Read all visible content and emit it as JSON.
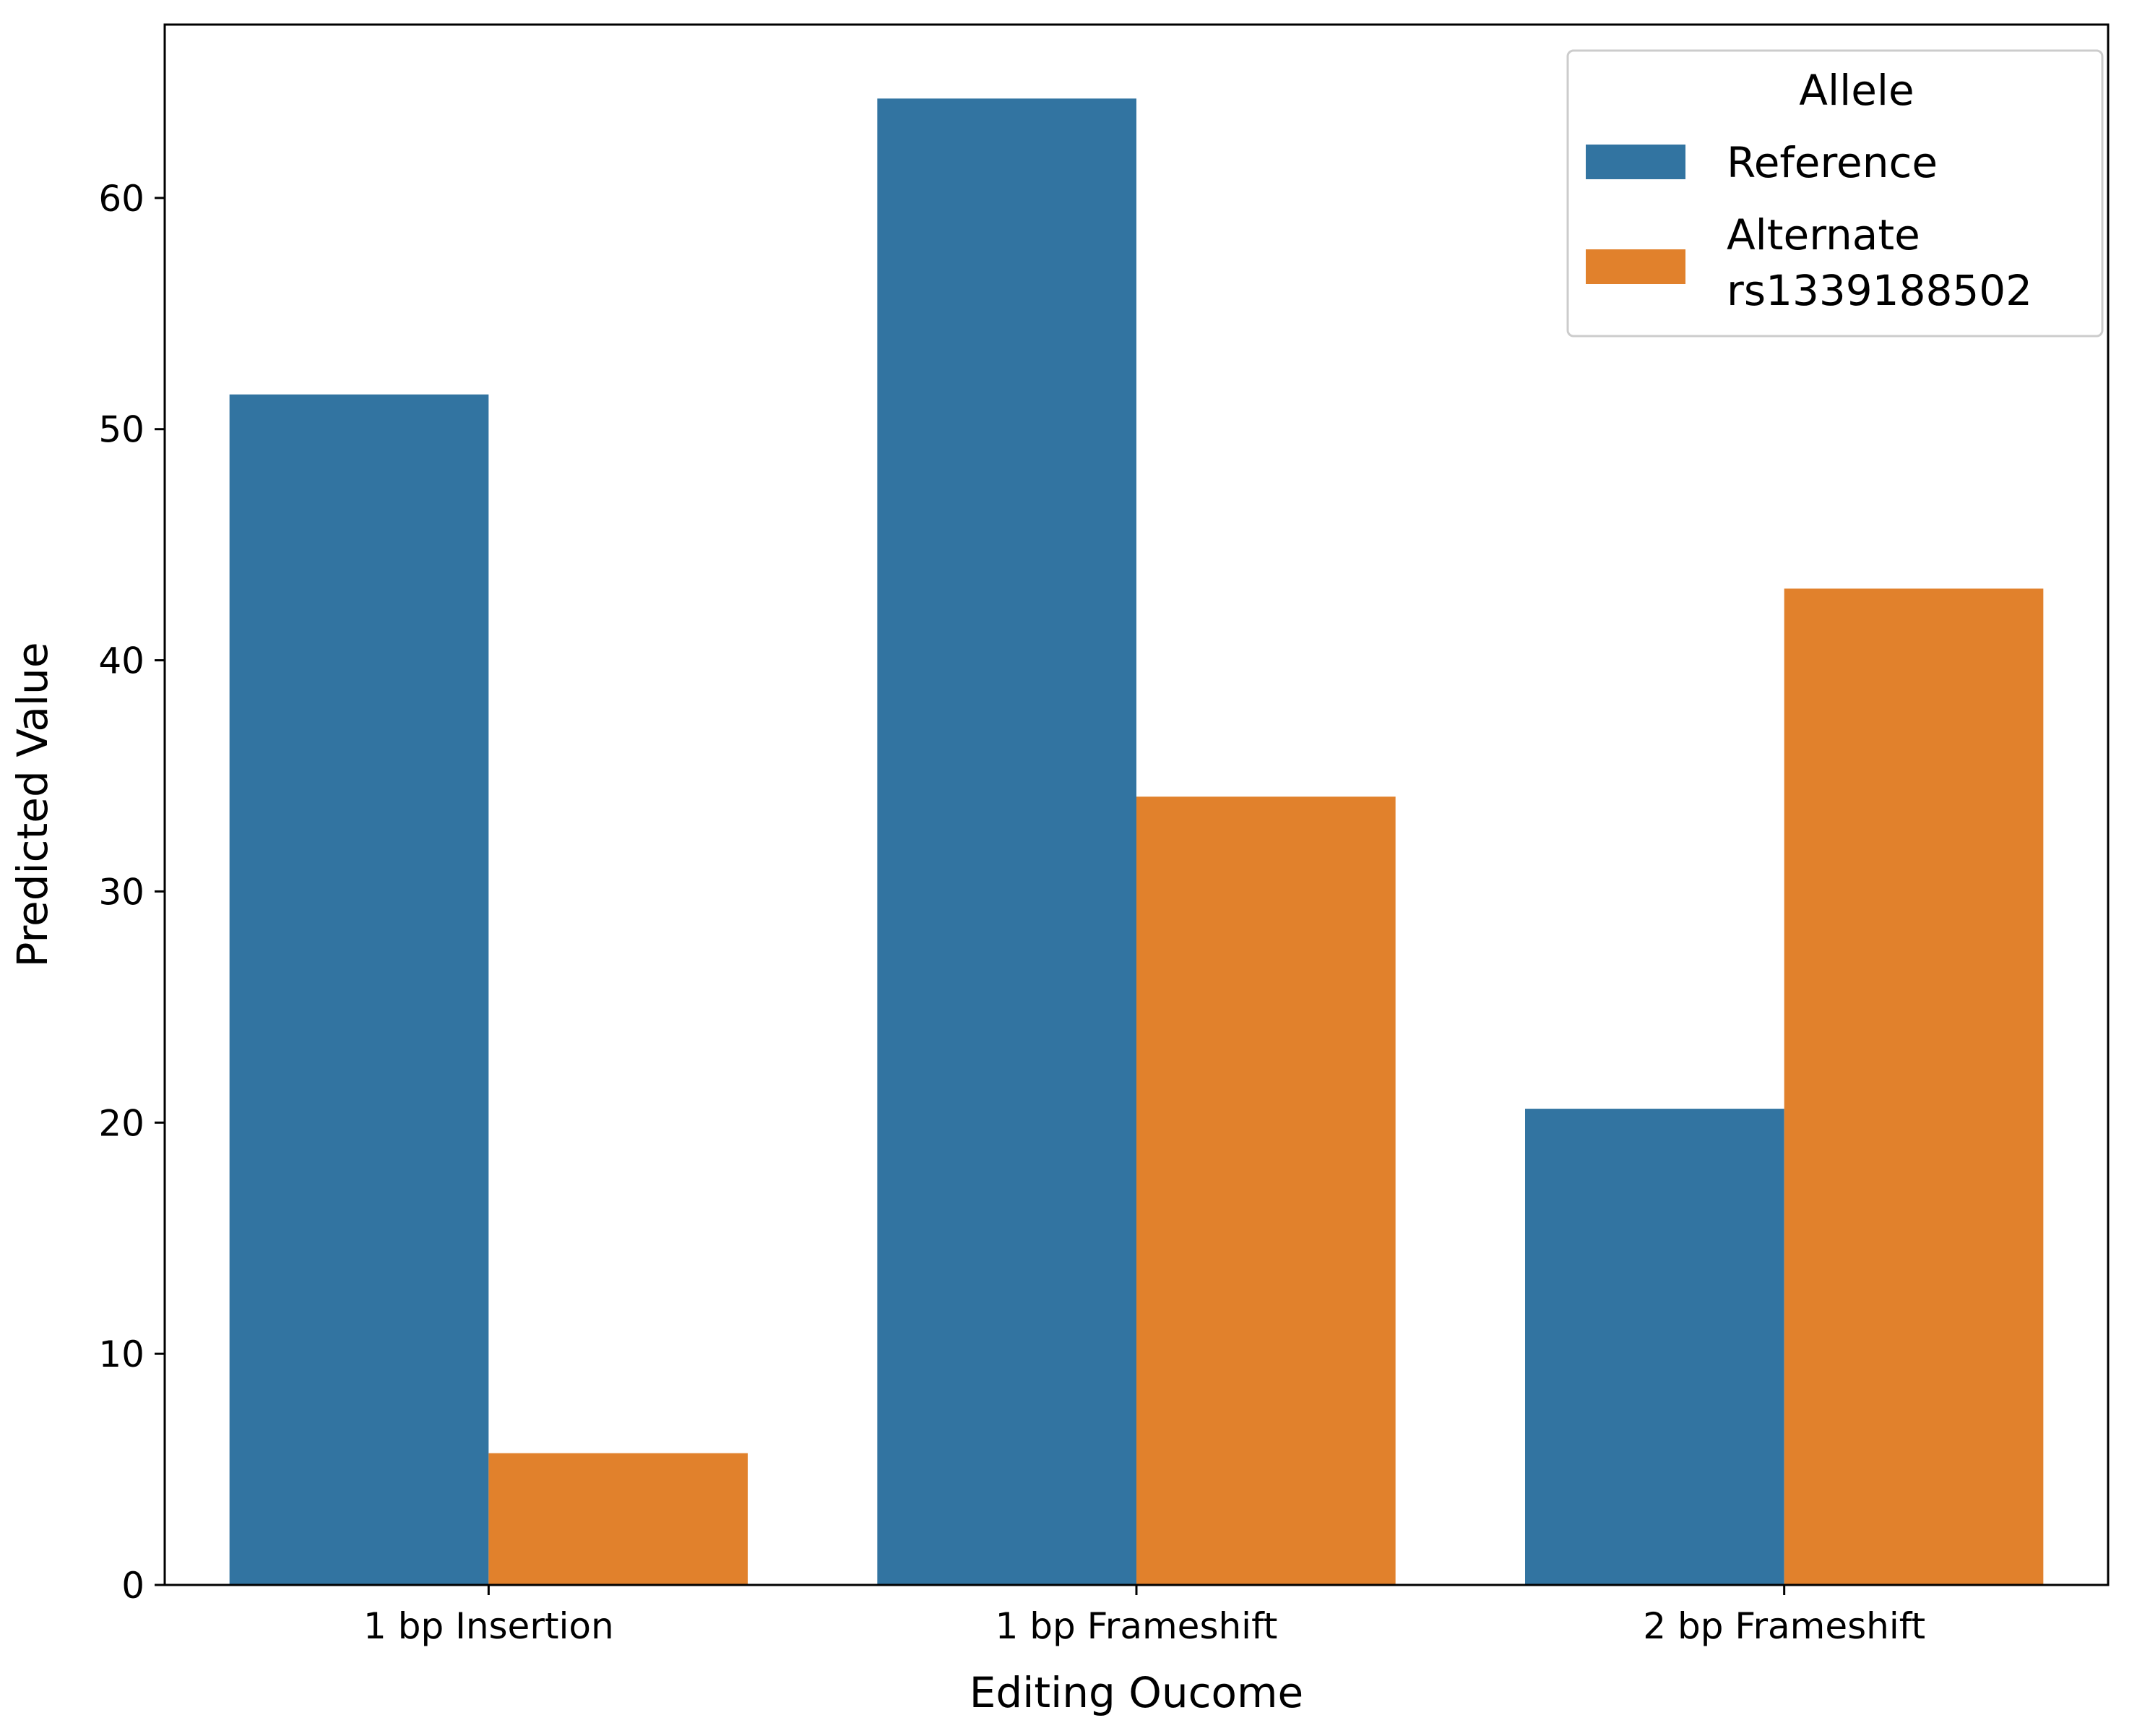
{
  "chart_data": {
    "type": "bar",
    "title": "",
    "xlabel": "Editing Oucome",
    "ylabel": "Predicted Value",
    "categories": [
      "1 bp Insertion",
      "1 bp Frameshift",
      "2 bp Frameshift"
    ],
    "series": [
      {
        "name": "Reference",
        "color": "#3274a1",
        "values": [
          51.5,
          64.3,
          20.6
        ]
      },
      {
        "name": "Alternate\nrs1339188502",
        "color": "#e1812c",
        "values": [
          5.7,
          34.1,
          43.1
        ]
      }
    ],
    "ylim": [
      0,
      67.5
    ],
    "yticks": [
      0,
      10,
      20,
      30,
      40,
      50,
      60
    ],
    "grid": false,
    "legend": {
      "title": "Allele",
      "placement": "top-right"
    }
  }
}
